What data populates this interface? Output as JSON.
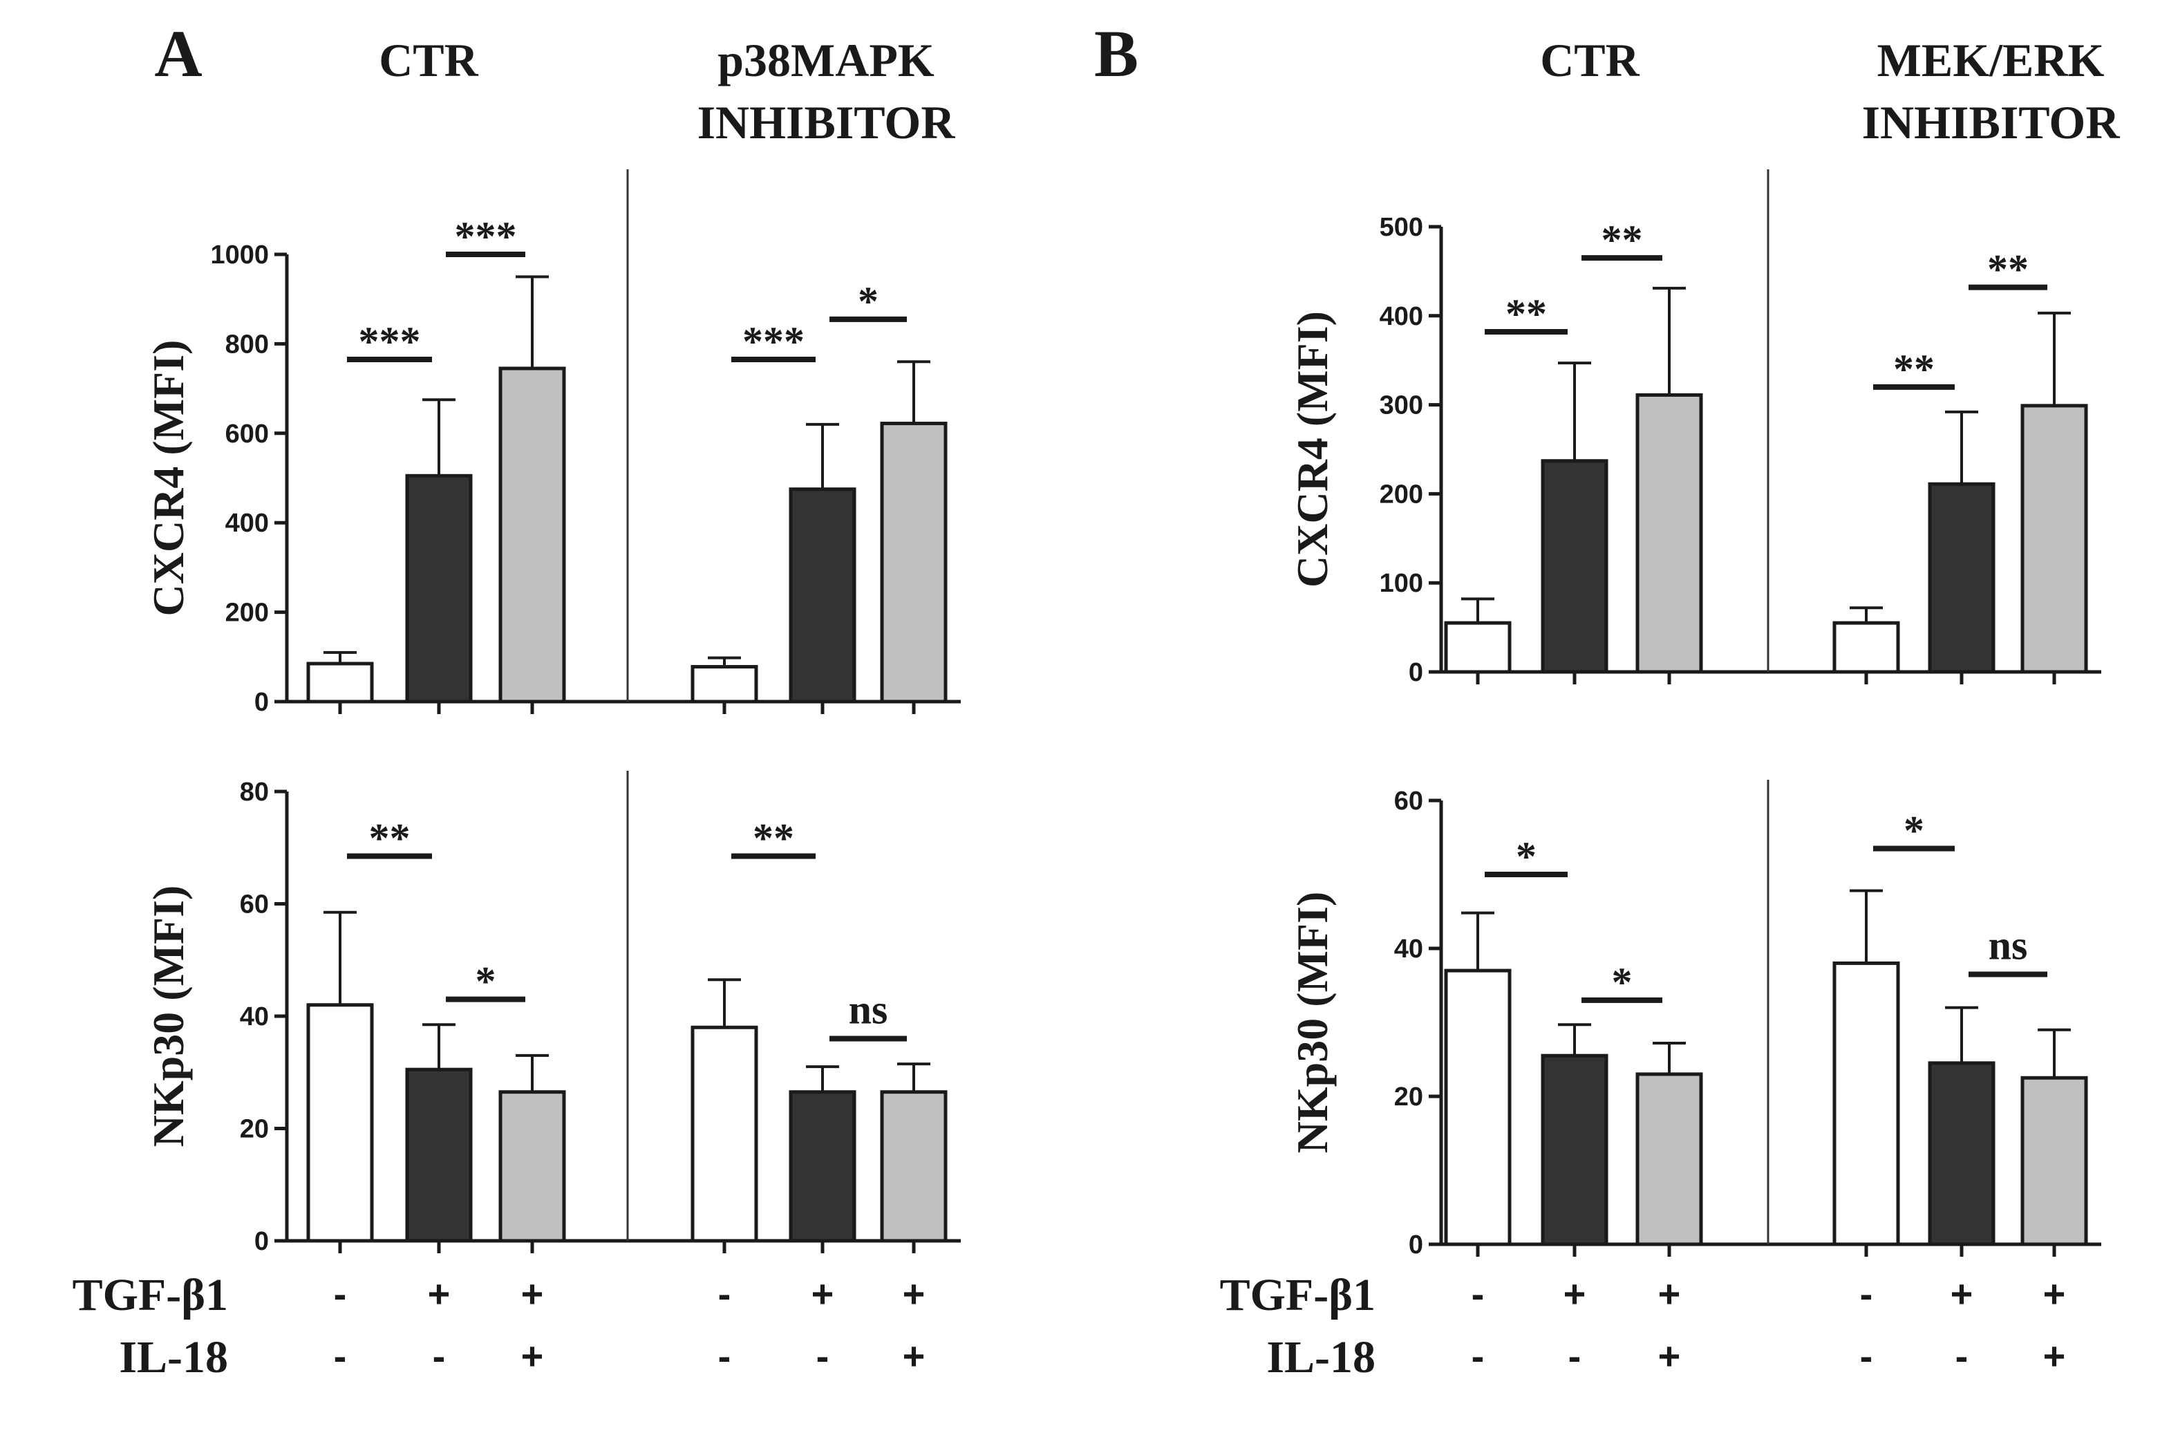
{
  "chart_data": [
    {
      "id": "A-CXCR4",
      "type": "bar",
      "panel_letter": "A",
      "group_titles": [
        "CTR",
        "p38MAPK\nINHIBITOR"
      ],
      "ylabel": "CXCR4 (MFI)",
      "ylim": [
        0,
        1000
      ],
      "yticks": [
        0,
        200,
        400,
        600,
        800,
        1000
      ],
      "groups": [
        {
          "bars": [
            {
              "value": 85,
              "err": 25,
              "fill": "#ffffff"
            },
            {
              "value": 505,
              "err": 170,
              "fill": "#333333"
            },
            {
              "value": 745,
              "err": 205,
              "fill": "#c0c0c0"
            }
          ]
        },
        {
          "bars": [
            {
              "value": 78,
              "err": 20,
              "fill": "#ffffff"
            },
            {
              "value": 475,
              "err": 145,
              "fill": "#333333"
            },
            {
              "value": 622,
              "err": 138,
              "fill": "#c0c0c0"
            }
          ]
        }
      ],
      "significance": [
        {
          "group": 0,
          "from": 0,
          "to": 1,
          "level": 765,
          "label": "***"
        },
        {
          "group": 0,
          "from": 1,
          "to": 2,
          "level": 1000,
          "label": "***"
        },
        {
          "group": 1,
          "from": 0,
          "to": 1,
          "level": 765,
          "label": "***"
        },
        {
          "group": 1,
          "from": 1,
          "to": 2,
          "level": 855,
          "label": "*"
        }
      ]
    },
    {
      "id": "A-NKp30",
      "type": "bar",
      "ylabel": "NKp30 (MFI)",
      "ylim": [
        0,
        80
      ],
      "yticks": [
        0,
        20,
        40,
        60,
        80
      ],
      "groups": [
        {
          "bars": [
            {
              "value": 42,
              "err": 16.5,
              "fill": "#ffffff"
            },
            {
              "value": 30.5,
              "err": 8,
              "fill": "#333333"
            },
            {
              "value": 26.5,
              "err": 6.5,
              "fill": "#c0c0c0"
            }
          ]
        },
        {
          "bars": [
            {
              "value": 38,
              "err": 8.5,
              "fill": "#ffffff"
            },
            {
              "value": 26.5,
              "err": 4.5,
              "fill": "#333333"
            },
            {
              "value": 26.5,
              "err": 5,
              "fill": "#c0c0c0"
            }
          ]
        }
      ],
      "significance": [
        {
          "group": 0,
          "from": 0,
          "to": 1,
          "level": 68.5,
          "label": "**"
        },
        {
          "group": 0,
          "from": 1,
          "to": 2,
          "level": 43,
          "label": "*"
        },
        {
          "group": 1,
          "from": 0,
          "to": 1,
          "level": 68.5,
          "label": "**"
        },
        {
          "group": 1,
          "from": 1,
          "to": 2,
          "level": 36,
          "label": "ns"
        }
      ]
    },
    {
      "id": "B-CXCR4",
      "type": "bar",
      "panel_letter": "B",
      "group_titles": [
        "CTR",
        "MEK/ERK\nINHIBITOR"
      ],
      "ylabel": "CXCR4 (MFI)",
      "ylim": [
        0,
        500
      ],
      "yticks": [
        0,
        100,
        200,
        300,
        400,
        500
      ],
      "groups": [
        {
          "bars": [
            {
              "value": 55,
              "err": 27,
              "fill": "#ffffff"
            },
            {
              "value": 237,
              "err": 110,
              "fill": "#333333"
            },
            {
              "value": 311,
              "err": 120,
              "fill": "#c0c0c0"
            }
          ]
        },
        {
          "bars": [
            {
              "value": 55,
              "err": 17,
              "fill": "#ffffff"
            },
            {
              "value": 211,
              "err": 81,
              "fill": "#333333"
            },
            {
              "value": 299,
              "err": 104,
              "fill": "#c0c0c0"
            }
          ]
        }
      ],
      "significance": [
        {
          "group": 0,
          "from": 0,
          "to": 1,
          "level": 382,
          "label": "**"
        },
        {
          "group": 0,
          "from": 1,
          "to": 2,
          "level": 465,
          "label": "**"
        },
        {
          "group": 1,
          "from": 0,
          "to": 1,
          "level": 320,
          "label": "**"
        },
        {
          "group": 1,
          "from": 1,
          "to": 2,
          "level": 432,
          "label": "**"
        }
      ]
    },
    {
      "id": "B-NKp30",
      "type": "bar",
      "ylabel": "NKp30 (MFI)",
      "ylim": [
        0,
        60
      ],
      "yticks": [
        0,
        20,
        40,
        60
      ],
      "groups": [
        {
          "bars": [
            {
              "value": 37,
              "err": 7.8,
              "fill": "#ffffff"
            },
            {
              "value": 25.5,
              "err": 4.2,
              "fill": "#333333"
            },
            {
              "value": 23,
              "err": 4.2,
              "fill": "#c0c0c0"
            }
          ]
        },
        {
          "bars": [
            {
              "value": 38,
              "err": 9.8,
              "fill": "#ffffff"
            },
            {
              "value": 24.5,
              "err": 7.5,
              "fill": "#333333"
            },
            {
              "value": 22.5,
              "err": 6.5,
              "fill": "#c0c0c0"
            }
          ]
        }
      ],
      "significance": [
        {
          "group": 0,
          "from": 0,
          "to": 1,
          "level": 50,
          "label": "*"
        },
        {
          "group": 0,
          "from": 1,
          "to": 2,
          "level": 33,
          "label": "*"
        },
        {
          "group": 1,
          "from": 0,
          "to": 1,
          "level": 53.5,
          "label": "*"
        },
        {
          "group": 1,
          "from": 1,
          "to": 2,
          "level": 36.5,
          "label": "ns"
        }
      ]
    }
  ],
  "treatment_table": {
    "rows": [
      {
        "label": "TGF-β1",
        "values": [
          "-",
          "+",
          "+",
          "-",
          "+",
          "+"
        ]
      },
      {
        "label": "IL-18",
        "values": [
          "-",
          "-",
          "+",
          "-",
          "-",
          "+"
        ]
      }
    ]
  }
}
